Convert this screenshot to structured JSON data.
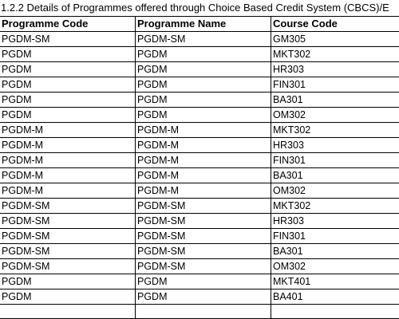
{
  "document": {
    "title": "1.2.2 Details of Programmes offered through Choice Based Credit System (CBCS)/E"
  },
  "table": {
    "headers": [
      "Programme Code",
      "Programme Name",
      "Course Code"
    ],
    "rows": [
      [
        "PGDM-SM",
        "PGDM-SM",
        "GM305"
      ],
      [
        "PGDM",
        "PGDM",
        "MKT302"
      ],
      [
        "PGDM",
        "PGDM",
        "HR303"
      ],
      [
        "PGDM",
        "PGDM",
        "FIN301"
      ],
      [
        "PGDM",
        "PGDM",
        "BA301"
      ],
      [
        "PGDM",
        "PGDM",
        "OM302"
      ],
      [
        "PGDM-M",
        "PGDM-M",
        "MKT302"
      ],
      [
        "PGDM-M",
        "PGDM-M",
        "HR303"
      ],
      [
        "PGDM-M",
        "PGDM-M",
        "FIN301"
      ],
      [
        "PGDM-M",
        "PGDM-M",
        "BA301"
      ],
      [
        "PGDM-M",
        "PGDM-M",
        "OM302"
      ],
      [
        "PGDM-SM",
        "PGDM-SM",
        "MKT302"
      ],
      [
        "PGDM-SM",
        "PGDM-SM",
        "HR303"
      ],
      [
        "PGDM-SM",
        "PGDM-SM",
        "FIN301"
      ],
      [
        "PGDM-SM",
        "PGDM-SM",
        "BA301"
      ],
      [
        "PGDM-SM",
        "PGDM-SM",
        "OM302"
      ],
      [
        "PGDM",
        "PGDM",
        "MKT401"
      ],
      [
        "PGDM",
        "PGDM",
        "BA401"
      ],
      [
        "",
        "",
        ""
      ]
    ]
  }
}
